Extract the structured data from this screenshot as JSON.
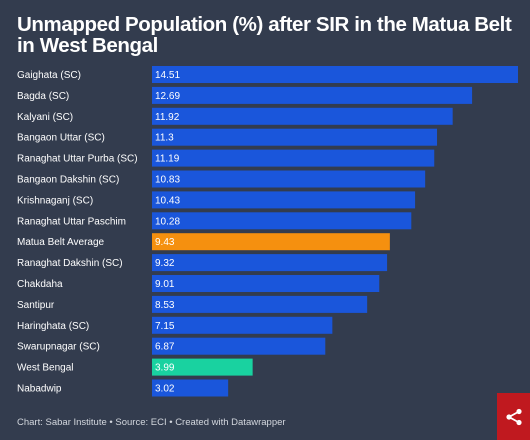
{
  "chart_data": {
    "type": "bar",
    "orientation": "horizontal",
    "title": "Unmapped Population (%) after SIR in the Matua Belt in West Bengal",
    "categories": [
      "Gaighata (SC)",
      "Bagda (SC)",
      "Kalyani (SC)",
      "Bangaon Uttar (SC)",
      "Ranaghat Uttar Purba (SC)",
      "Bangaon Dakshin (SC)",
      "Krishnaganj (SC)",
      "Ranaghat Uttar Paschim",
      "Matua Belt Average",
      "Ranaghat Dakshin (SC)",
      "Chakdaha",
      "Santipur",
      "Haringhata (SC)",
      "Swarupnagar (SC)",
      "West Bengal",
      "Nabadwip"
    ],
    "values": [
      14.51,
      12.69,
      11.92,
      11.3,
      11.19,
      10.83,
      10.43,
      10.28,
      9.43,
      9.32,
      9.01,
      8.53,
      7.15,
      6.87,
      3.99,
      3.02
    ],
    "value_labels": [
      "14.51",
      "12.69",
      "11.92",
      "11.3",
      "11.19",
      "10.83",
      "10.43",
      "10.28",
      "9.43",
      "9.32",
      "9.01",
      "8.53",
      "7.15",
      "6.87",
      "3.99",
      "3.02"
    ],
    "colors": {
      "default": "#1a56db",
      "highlight_average": "#f5900f",
      "highlight_state": "#19d2a0"
    },
    "highlight": {
      "Matua Belt Average": "highlight_average",
      "West Bengal": "highlight_state"
    },
    "xlim": [
      0,
      14.51
    ],
    "grid": false,
    "legend": "none"
  },
  "footer": {
    "text": "Chart: Sabar Institute • Source: ECI • Created with Datawrapper"
  },
  "share": {
    "icon": "share-icon"
  },
  "theme": {
    "background": "#333c4e",
    "share_button": "#c0191f"
  }
}
